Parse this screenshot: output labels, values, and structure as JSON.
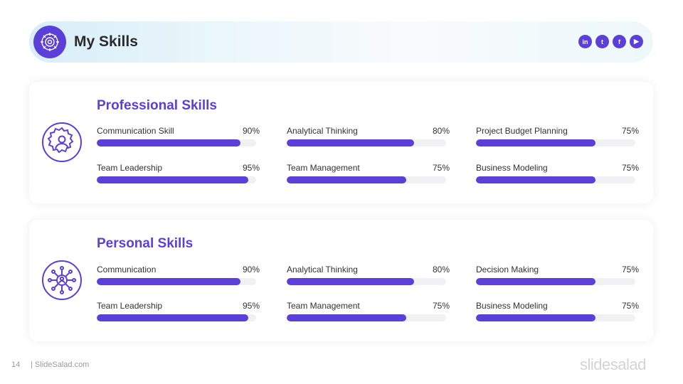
{
  "header": {
    "title": "My Skills",
    "icon": "gear-globe-icon",
    "social_links": [
      {
        "label": "in",
        "icon": "linkedin-icon"
      },
      {
        "label": "t",
        "icon": "twitter-icon"
      },
      {
        "label": "f",
        "icon": "facebook-icon"
      },
      {
        "label": "▶",
        "icon": "youtube-icon"
      }
    ]
  },
  "sections": [
    {
      "title": "Professional Skills",
      "icon": "gear-person-icon",
      "skills": [
        {
          "label": "Communication Skill",
          "value": "90%",
          "level": 0.9
        },
        {
          "label": "Analytical Thinking",
          "value": "80%",
          "level": 0.8
        },
        {
          "label": "Project Budget Planning",
          "value": "75%",
          "level": 0.75
        },
        {
          "label": "Team Leadership",
          "value": "95%",
          "level": 0.95
        },
        {
          "label": "Team Management",
          "value": "75%",
          "level": 0.75
        },
        {
          "label": "Business Modeling",
          "value": "75%",
          "level": 0.75
        }
      ]
    },
    {
      "title": "Personal Skills",
      "icon": "network-person-icon",
      "skills": [
        {
          "label": "Communication",
          "value": "90%",
          "level": 0.9
        },
        {
          "label": "Analytical Thinking",
          "value": "80%",
          "level": 0.8
        },
        {
          "label": "Decision Making",
          "value": "75%",
          "level": 0.75
        },
        {
          "label": "Team Leadership",
          "value": "95%",
          "level": 0.95
        },
        {
          "label": "Team Management",
          "value": "75%",
          "level": 0.75
        },
        {
          "label": "Business Modeling",
          "value": "75%",
          "level": 0.75
        }
      ]
    }
  ],
  "footer": {
    "page_number": "14",
    "site": "| SlideSalad.com",
    "brand": "slidesalad"
  },
  "colors": {
    "accent": "#5b3fd9",
    "track": "#f1f1f3",
    "header_gradient_start": "#d8eef8"
  }
}
